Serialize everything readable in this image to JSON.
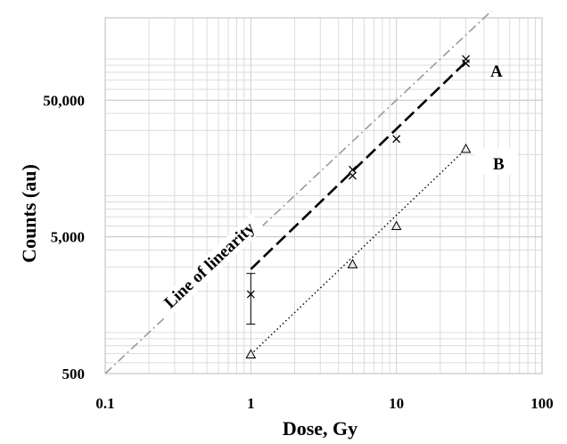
{
  "chart_data": {
    "type": "scatter",
    "title": "",
    "xlabel": "Dose, Gy",
    "ylabel": "Counts (au)",
    "x_scale": "log",
    "y_scale": "log",
    "xlim": [
      0.1,
      100
    ],
    "ylim": [
      500,
      200000
    ],
    "grid": true,
    "x_ticks": [
      {
        "value": 0.1,
        "label": "0.1"
      },
      {
        "value": 1,
        "label": "1"
      },
      {
        "value": 10,
        "label": "10"
      },
      {
        "value": 100,
        "label": "100"
      }
    ],
    "y_ticks": [
      {
        "value": 500,
        "label": "500"
      },
      {
        "value": 5000,
        "label": "5,000"
      },
      {
        "value": 50000,
        "label": "50,000"
      }
    ],
    "series": [
      {
        "name": "A",
        "marker": "x",
        "points": [
          {
            "x": 1,
            "y": 1900,
            "err_low": 1150,
            "err_high": 2700
          },
          {
            "x": 5,
            "y": 14000
          },
          {
            "x": 5,
            "y": 15500
          },
          {
            "x": 10,
            "y": 26000
          },
          {
            "x": 30,
            "y": 93000
          },
          {
            "x": 30,
            "y": 100000
          }
        ],
        "fit": {
          "style": "dashed",
          "x": [
            1,
            30
          ],
          "y": [
            2900,
            95000
          ]
        }
      },
      {
        "name": "B",
        "marker": "triangle",
        "points": [
          {
            "x": 1,
            "y": 690
          },
          {
            "x": 5,
            "y": 3150
          },
          {
            "x": 10,
            "y": 6000
          },
          {
            "x": 30,
            "y": 22000
          }
        ],
        "fit": {
          "style": "dotted",
          "x": [
            1,
            30
          ],
          "y": [
            690,
            22000
          ]
        }
      }
    ],
    "reference_line": {
      "label": "Line of linearity",
      "style": "dash-dot",
      "color": "#9a9a9a",
      "x": [
        0.1,
        45
      ],
      "y": [
        500,
        225000
      ]
    }
  }
}
